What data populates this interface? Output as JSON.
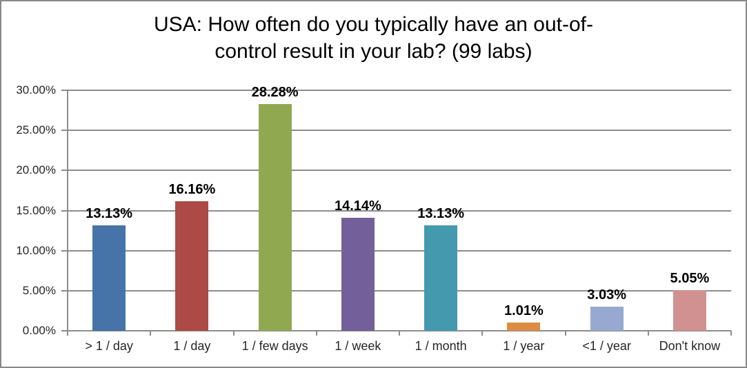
{
  "window": {
    "background": "#FFFFFF",
    "frame_color": "#898989"
  },
  "chart_data": {
    "type": "bar",
    "title": "USA: How often do you typically have an out-of-control result in your lab? (99 labs)",
    "title_lines": [
      "USA: How often do you typically have an out-of-",
      "control result in your lab? (99 labs)"
    ],
    "categories": [
      "> 1 / day",
      "1 / day",
      "1 / few days",
      "1 / week",
      "1 / month",
      "1 / year",
      "<1 / year",
      "Don't know"
    ],
    "values": [
      13.13,
      16.16,
      28.28,
      14.14,
      13.13,
      1.01,
      3.03,
      5.05
    ],
    "data_labels": [
      "13.13%",
      "16.16%",
      "28.28%",
      "14.14%",
      "13.13%",
      "1.01%",
      "3.03%",
      "5.05%"
    ],
    "bar_colors": [
      "#4674A8",
      "#AD4A45",
      "#90A951",
      "#73609A",
      "#4599AF",
      "#DD8D43",
      "#97A9D0",
      "#D19190"
    ],
    "xlabel": "",
    "ylabel": "",
    "ylim": [
      0,
      30
    ],
    "ytick_values": [
      0,
      5,
      10,
      15,
      20,
      25,
      30
    ],
    "ytick_labels": [
      "0.00%",
      "5.00%",
      "10.00%",
      "15.00%",
      "20.00%",
      "25.00%",
      "30.00%"
    ],
    "grid": true,
    "legend": "none",
    "gridline_color": "#8C8C8C",
    "axis_color": "#8C8C8C",
    "data_label_color": "#000000",
    "tick_label_color": "#262626"
  }
}
